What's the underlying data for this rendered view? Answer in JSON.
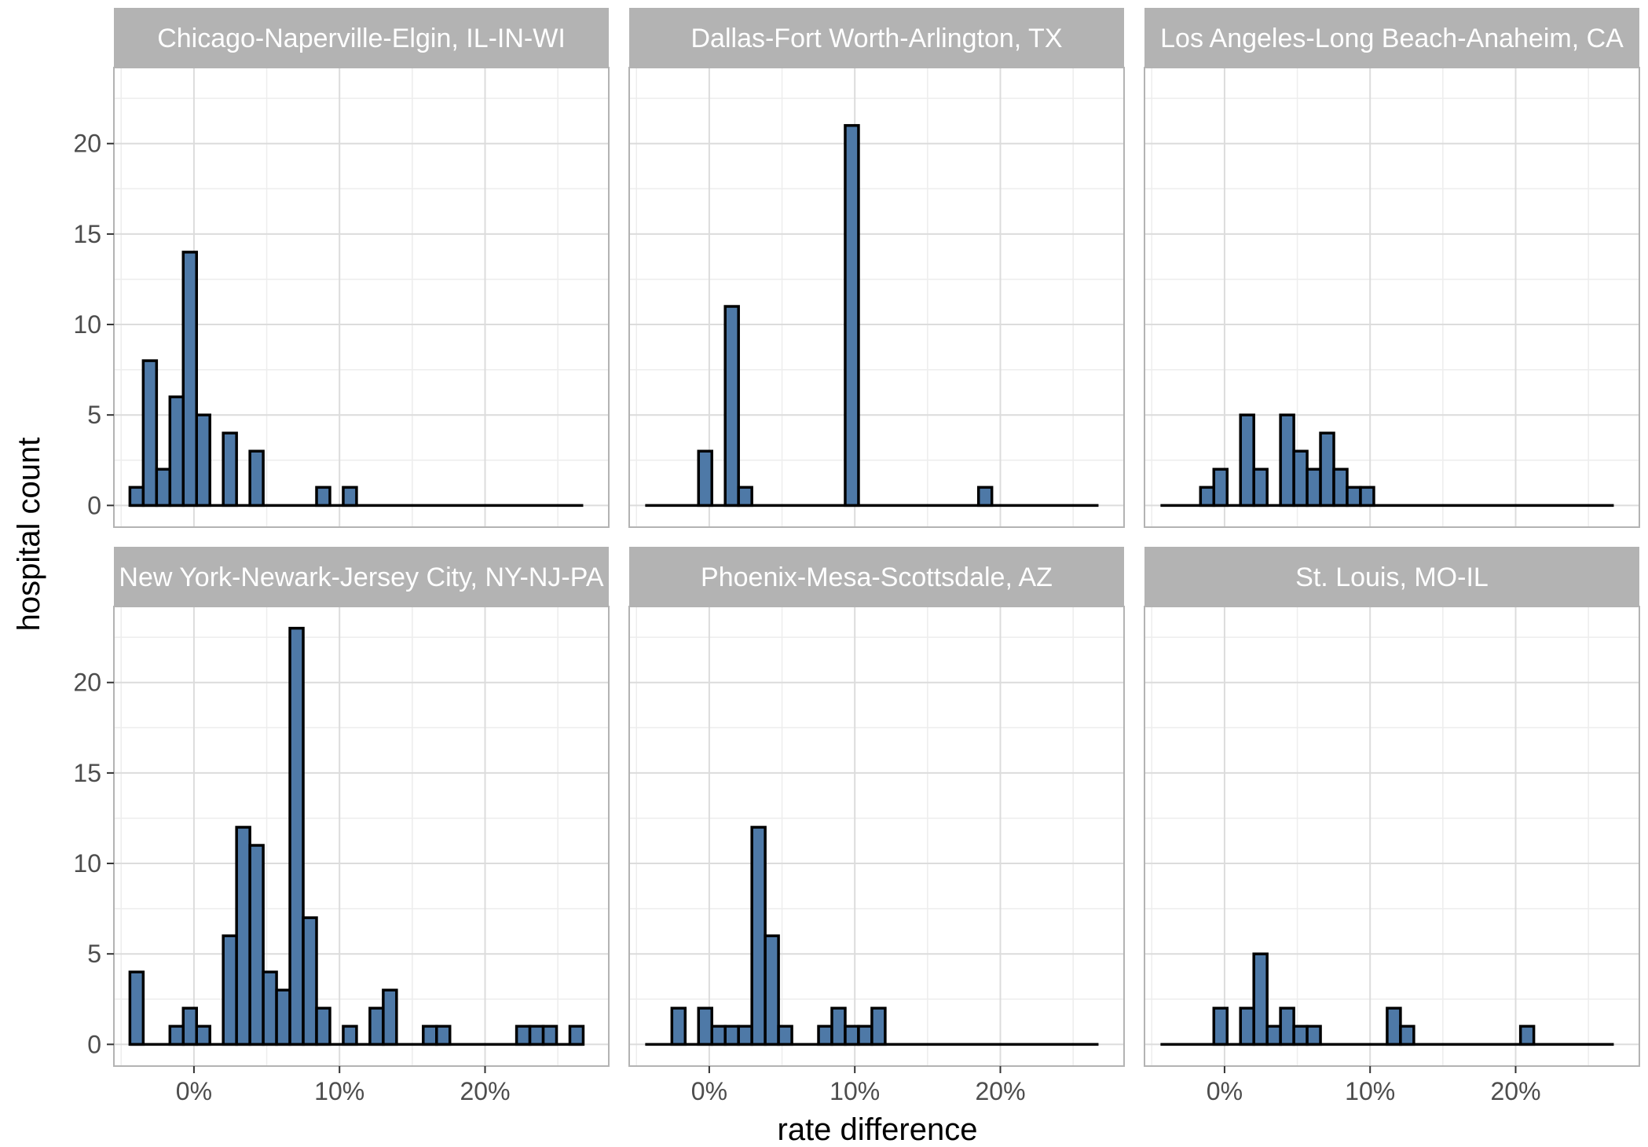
{
  "chart_data": {
    "type": "bar",
    "xlabel": "rate difference",
    "ylabel": "hospital count",
    "x_ticks": [
      "0%",
      "10%",
      "20%"
    ],
    "x_tick_values": [
      0,
      10,
      20
    ],
    "y_ticks": [
      "0",
      "5",
      "10",
      "15",
      "20"
    ],
    "y_tick_values": [
      0,
      5,
      10,
      15,
      20
    ],
    "xlim": [
      -5.5,
      28.5
    ],
    "ylim": [
      -1.2,
      24.2
    ],
    "bin_width": 0.916,
    "bin_start": -4.4,
    "bin_count": 34,
    "grid": true,
    "fill_color": "#4E79A7",
    "edge_color": "#000000",
    "strip_color": "#B3B3B3",
    "panels": [
      {
        "name": "Chicago-Naperville-Elgin, IL-IN-WI",
        "counts": [
          1,
          8,
          2,
          6,
          14,
          5,
          0,
          4,
          0,
          3,
          0,
          0,
          0,
          0,
          1,
          0,
          1,
          0,
          0,
          0,
          0,
          0,
          0,
          0,
          0,
          0,
          0,
          0,
          0,
          0,
          0,
          0,
          0,
          0
        ]
      },
      {
        "name": "Dallas-Fort Worth-Arlington, TX",
        "counts": [
          0,
          0,
          0,
          0,
          3,
          0,
          11,
          1,
          0,
          0,
          0,
          0,
          0,
          0,
          0,
          21,
          0,
          0,
          0,
          0,
          0,
          0,
          0,
          0,
          0,
          1,
          0,
          0,
          0,
          0,
          0,
          0,
          0,
          0
        ]
      },
      {
        "name": "Los Angeles-Long Beach-Anaheim, CA",
        "counts": [
          0,
          0,
          0,
          1,
          2,
          0,
          5,
          2,
          0,
          5,
          3,
          2,
          4,
          2,
          1,
          1,
          0,
          0,
          0,
          0,
          0,
          0,
          0,
          0,
          0,
          0,
          0,
          0,
          0,
          0,
          0,
          0,
          0,
          0
        ]
      },
      {
        "name": "New York-Newark-Jersey City, NY-NJ-PA",
        "counts": [
          4,
          0,
          0,
          1,
          2,
          1,
          0,
          6,
          12,
          11,
          4,
          3,
          23,
          7,
          2,
          0,
          1,
          0,
          2,
          3,
          0,
          0,
          1,
          1,
          0,
          0,
          0,
          0,
          0,
          1,
          1,
          1,
          0,
          1
        ]
      },
      {
        "name": "Phoenix-Mesa-Scottsdale, AZ",
        "counts": [
          0,
          0,
          2,
          0,
          2,
          1,
          1,
          1,
          12,
          6,
          1,
          0,
          0,
          1,
          2,
          1,
          1,
          2,
          0,
          0,
          0,
          0,
          0,
          0,
          0,
          0,
          0,
          0,
          0,
          0,
          0,
          0,
          0,
          0
        ]
      },
      {
        "name": "St. Louis, MO-IL",
        "counts": [
          0,
          0,
          0,
          0,
          2,
          0,
          2,
          5,
          1,
          2,
          1,
          1,
          0,
          0,
          0,
          0,
          0,
          2,
          1,
          0,
          0,
          0,
          0,
          0,
          0,
          0,
          0,
          1,
          0,
          0,
          0,
          0,
          0,
          0
        ]
      }
    ]
  }
}
